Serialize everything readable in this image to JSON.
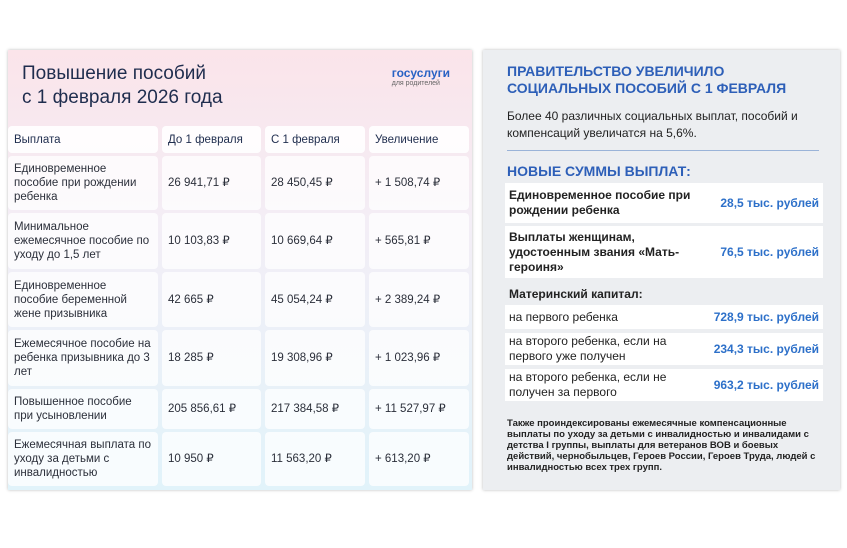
{
  "left": {
    "title": [
      "Повышение пособий",
      "с 1 февраля 2026 года"
    ],
    "logo": {
      "brand": "госуслуги",
      "sub": "для родителей"
    },
    "table": {
      "header": [
        "Выплата",
        "До 1 февраля",
        "С 1 февраля",
        "Увеличение"
      ],
      "rows": [
        [
          "Единовременное пособие при рождении ребенка",
          "26 941,71 ₽",
          "28 450,45 ₽",
          "+ 1 508,74 ₽"
        ],
        [
          "Минимальное ежемесячное пособие по уходу до 1,5 лет",
          "10 103,83 ₽",
          "10 669,64 ₽",
          "+ 565,81 ₽"
        ],
        [
          "Единовременное пособие беременной жене призывника",
          "42 665 ₽",
          "45 054,24 ₽",
          "+ 2 389,24 ₽"
        ],
        [
          "Ежемесячное пособие на ребенка призывника до 3 лет",
          "18 285 ₽",
          "19 308,96 ₽",
          "+ 1 023,96 ₽"
        ],
        [
          "Повышенное пособие при усыновлении",
          "205 856,61 ₽",
          "217 384,58 ₽",
          "+ 11 527,97 ₽"
        ],
        [
          "Ежемесячная выплата по уходу за детьми с инвалидностью",
          "10 950 ₽",
          "11 563,20 ₽",
          "+ 613,20 ₽"
        ]
      ]
    }
  },
  "right": {
    "heading": [
      "ПРАВИТЕЛЬСТВО УВЕЛИЧИЛО",
      "СОЦИАЛЬНЫХ ПОСОБИЙ С 1 ФЕВРАЛЯ"
    ],
    "intro": "Более 40 различных социальных выплат, пособий и компенсаций увеличатся на 5,6%.",
    "subheading": "НОВЫЕ СУММЫ ВЫПЛАТ:",
    "items": [
      {
        "label": "Единовременное пособие при рождении ребенка",
        "amount": "28,5 тыс. рублей"
      },
      {
        "label": "Выплаты женщинам, удостоенным звания «Мать-героиня»",
        "amount": "76,5 тыс. рублей"
      }
    ],
    "capital": {
      "title": "Материнский капитал:",
      "items": [
        {
          "label": "на первого ребенка",
          "amount": "728,9 тыс. рублей"
        },
        {
          "label": "на второго ребенка, если на первого уже получен",
          "amount": "234,3 тыс. рублей"
        },
        {
          "label": "на второго ребенка, если не получен за первого",
          "amount": "963,2 тыс. рублей"
        }
      ]
    },
    "footnote": "Также проиндексированы ежемесячные компенсационные выплаты по уходу за детьми с инвалидностью и инвалидами с детства I группы, выплаты для ветеранов ВОВ и боевых действий, чернобыльцев, Героев России, Героев Труда, людей с инвалидностью всех трех групп."
  }
}
